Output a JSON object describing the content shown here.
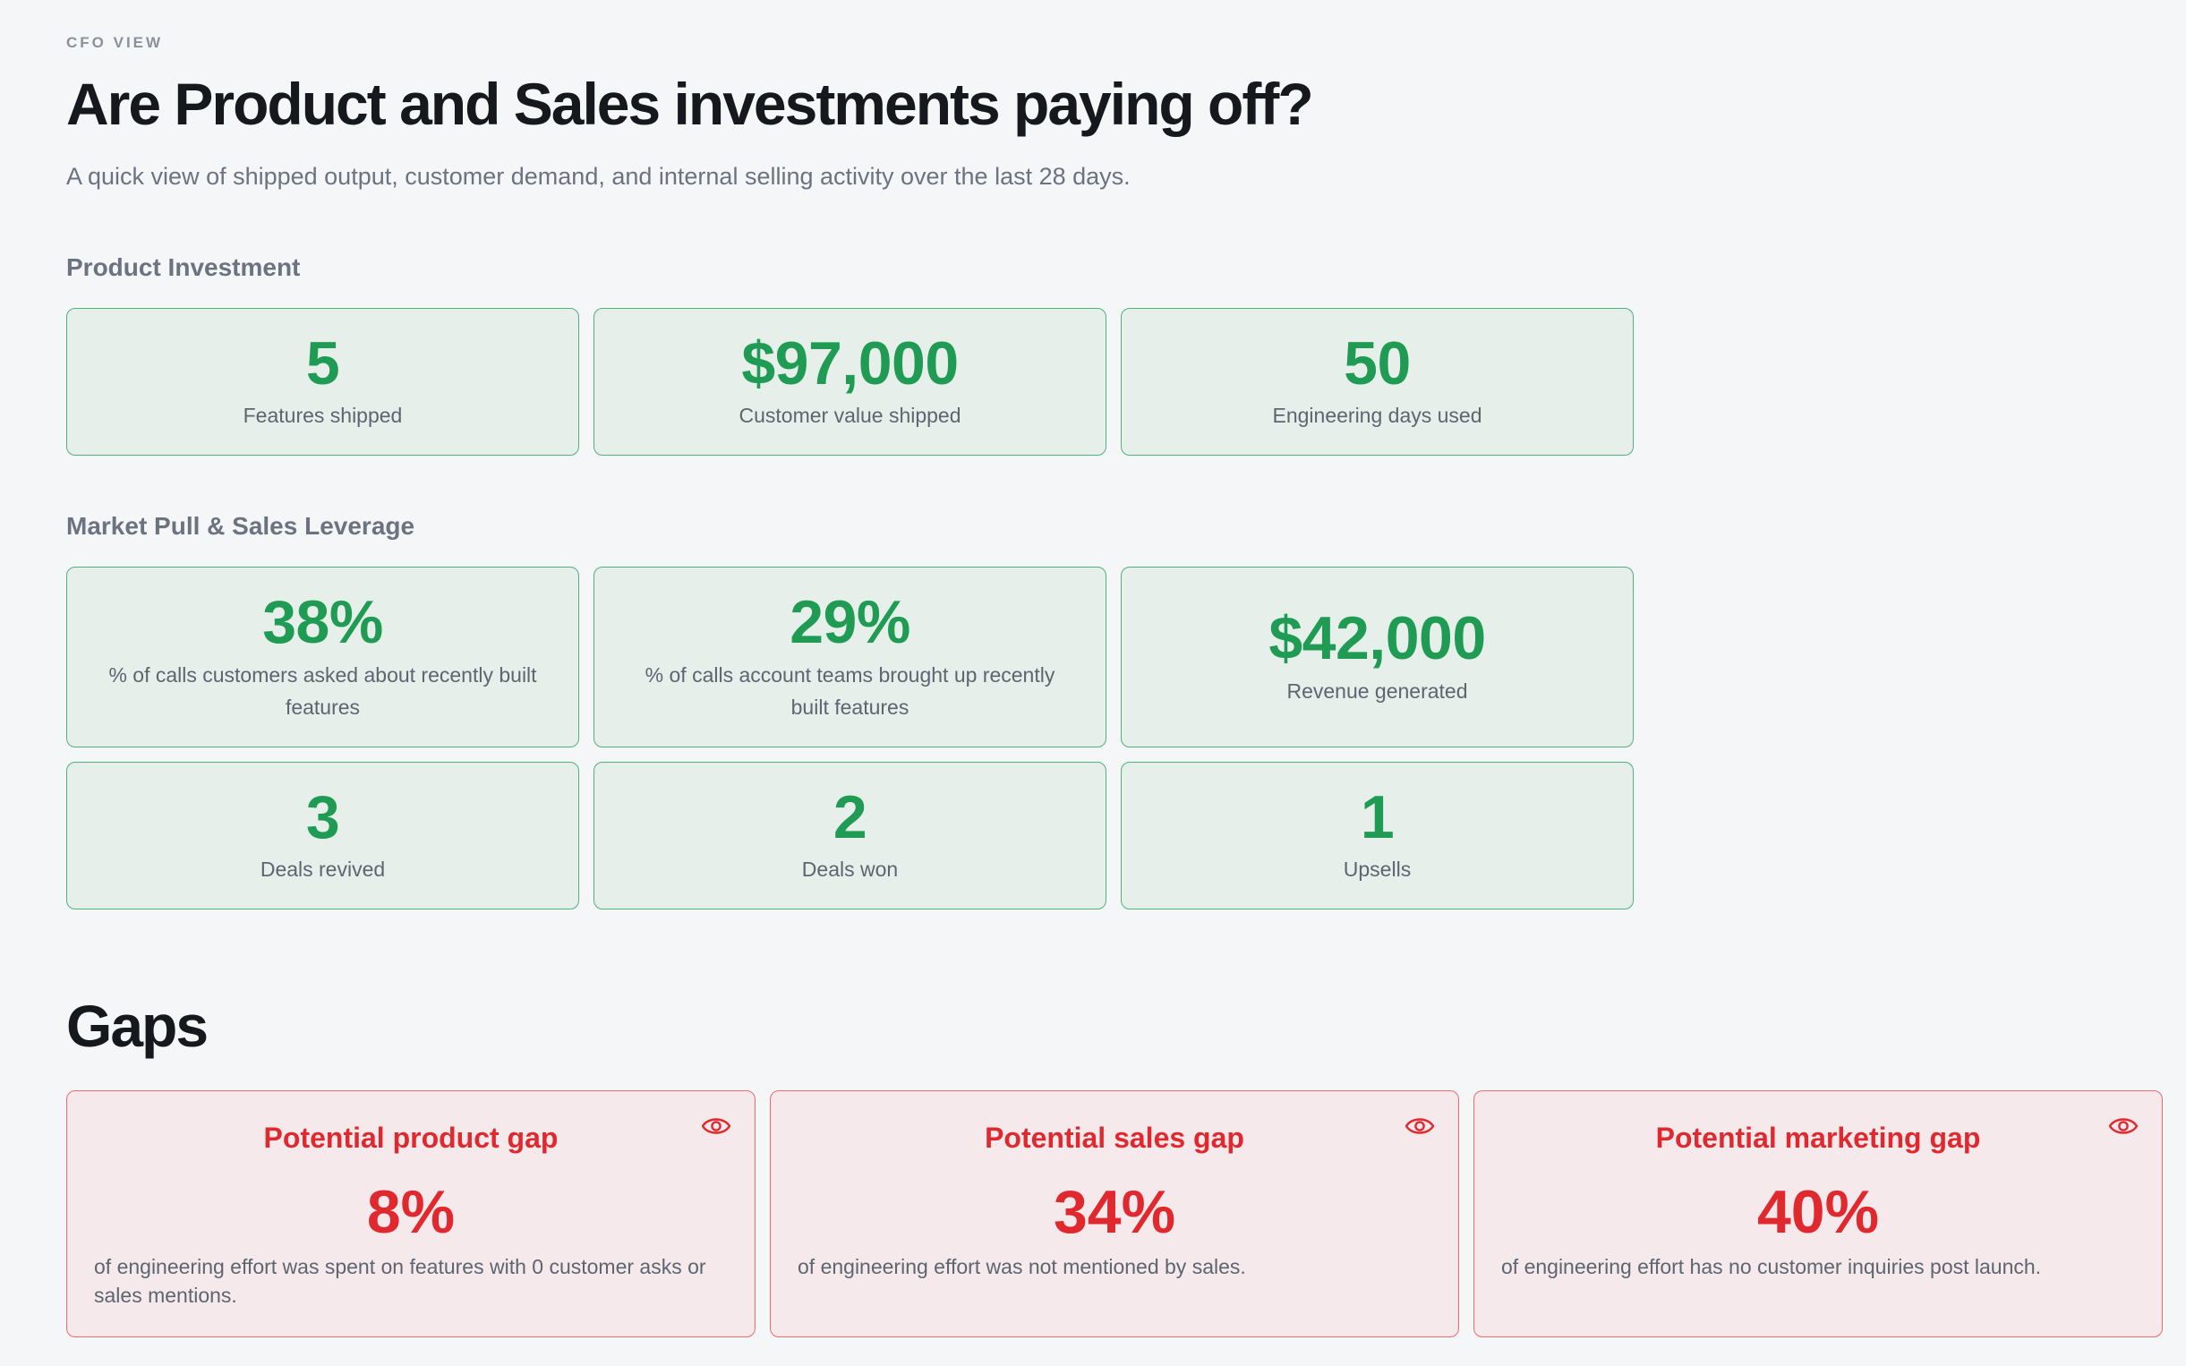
{
  "header": {
    "eyebrow": "CFO VIEW",
    "title": "Are Product and Sales investments paying off?",
    "subtitle": "A quick view of shipped output, customer demand, and internal selling activity over the last 28 days."
  },
  "product_investment": {
    "label": "Product Investment",
    "cards": [
      {
        "value": "5",
        "label": "Features shipped"
      },
      {
        "value": "$97,000",
        "label": "Customer value shipped"
      },
      {
        "value": "50",
        "label": "Engineering days used"
      }
    ]
  },
  "market_pull": {
    "label": "Market Pull & Sales Leverage",
    "cards": [
      {
        "value": "38%",
        "label": "% of calls customers asked about recently built features"
      },
      {
        "value": "29%",
        "label": "% of calls account teams brought up recently built features"
      },
      {
        "value": "$42,000",
        "label": "Revenue generated"
      },
      {
        "value": "3",
        "label": "Deals revived"
      },
      {
        "value": "2",
        "label": "Deals won"
      },
      {
        "value": "1",
        "label": "Upsells"
      }
    ]
  },
  "gaps": {
    "title": "Gaps",
    "cards": [
      {
        "title": "Potential product gap",
        "value": "8%",
        "desc": "of engineering effort was spent on features with 0 customer asks or sales mentions.",
        "icon": "eye-icon"
      },
      {
        "title": "Potential sales gap",
        "value": "34%",
        "desc": "of engineering effort was not mentioned by sales.",
        "icon": "eye-icon"
      },
      {
        "title": "Potential marketing gap",
        "value": "40%",
        "desc": "of engineering effort has no customer inquiries post launch.",
        "icon": "eye-icon"
      }
    ]
  },
  "colors": {
    "background": "#f5f6f8",
    "positive": "#1f9b54",
    "positive_bg": "#e6efea",
    "negative": "#e0292f",
    "negative_bg": "#f5e9eb"
  }
}
